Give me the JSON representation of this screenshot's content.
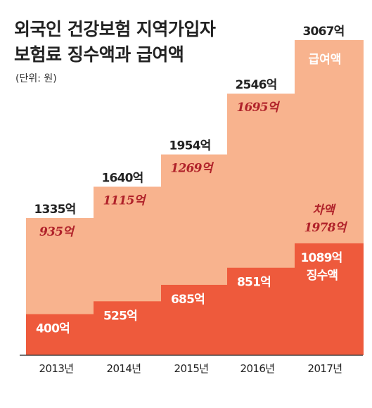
{
  "title_line1": "외국인 건강보험 지역가입자",
  "title_line2": "보험료 징수액과 급여액",
  "unit": "(단위: 원)",
  "colors": {
    "benefit": "#f8b38e",
    "collection": "#ee5a3c",
    "diff_text": "#b0222a",
    "baseline": "#444444"
  },
  "chart_data": {
    "type": "bar",
    "categories": [
      "2013년",
      "2014년",
      "2015년",
      "2016년",
      "2017년"
    ],
    "series": [
      {
        "name": "급여액",
        "values": [
          1335,
          1640,
          1954,
          2546,
          3067
        ],
        "labels": [
          "1335억",
          "1640억",
          "1954억",
          "2546억",
          "3067억"
        ]
      },
      {
        "name": "징수액",
        "values": [
          400,
          525,
          685,
          851,
          1089
        ],
        "labels": [
          "400억",
          "525억",
          "685억",
          "851억",
          "1089억"
        ]
      },
      {
        "name": "차액",
        "values": [
          935,
          1115,
          1269,
          1695,
          1978
        ],
        "labels": [
          "935억",
          "1115억",
          "1269억",
          "1695억",
          "1978억"
        ]
      }
    ],
    "ylim": [
      0,
      3200
    ]
  }
}
